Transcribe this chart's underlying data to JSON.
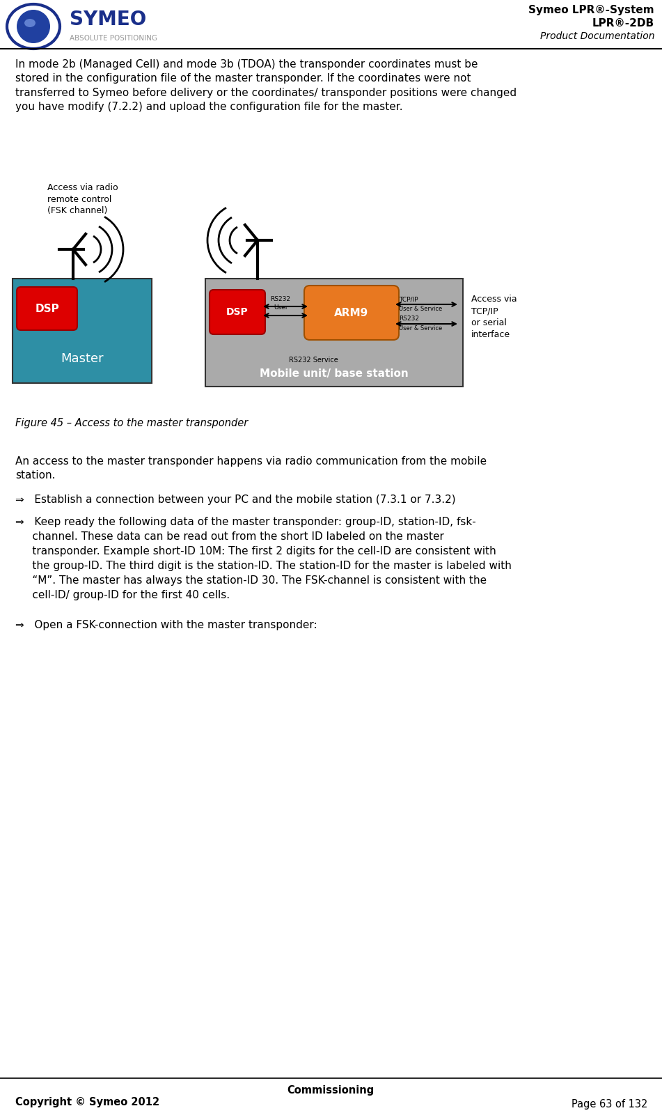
{
  "title_right_line1": "Symeo LPR®-System",
  "title_right_line2": "LPR®-2DB",
  "title_right_line3": "Product Documentation",
  "body_text": "In mode 2b (Managed Cell) and mode 3b (TDOA) the transponder coordinates must be\nstored in the configuration file of the master transponder. If the coordinates were not\ntransferred to Symeo before delivery or the coordinates/ transponder positions were changed\nyou have modify (7.2.2) and upload the configuration file for the master.",
  "figure_caption": "Figure 45 – Access to the master transponder",
  "para2": "An access to the master transponder happens via radio communication from the mobile\nstation.",
  "bullet1": "⇒   Establish a connection between your PC and the mobile station (7.3.1 or 7.3.2)",
  "bullet2_line1": "⇒   Keep ready the following data of the master transponder: group-ID, station-ID, fsk-",
  "bullet2_line2": "     channel. These data can be read out from the short ID labeled on the master",
  "bullet2_line3": "     transponder. Example short-ID 10M: The first 2 digits for the cell-ID are consistent with",
  "bullet2_line4": "     the group-ID. The third digit is the station-ID. The station-ID for the master is labeled with",
  "bullet2_line5": "     “M”. The master has always the station-ID 30. The FSK-channel is consistent with the",
  "bullet2_line6": "     cell-ID/ group-ID for the first 40 cells.",
  "bullet3": "⇒   Open a FSK-connection with the master transponder:",
  "footer_line": "Commissioning",
  "footer_copyright": "Copyright © Symeo 2012",
  "footer_page": "Page 63 of 132",
  "bg_color": "#ffffff",
  "text_color": "#000000",
  "teal_color": "#2e8fa5",
  "gray_color": "#aaaaaa",
  "red_color": "#dd0000",
  "orange_color": "#e87820",
  "access_radio_text": "Access via radio\nremote control\n(FSK channel)",
  "access_tcp_text": "Access via\nTCP/IP\nor serial\ninterface",
  "symeo_blue": "#1a2f8a",
  "symeo_ring": "#1a2f8a",
  "abs_pos_color": "#999999"
}
